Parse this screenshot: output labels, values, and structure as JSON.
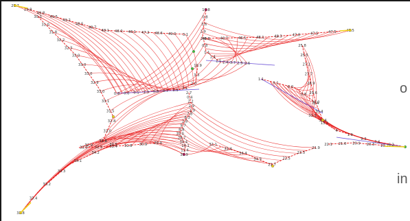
{
  "side_text": {
    "top": "o",
    "bottom": "in"
  },
  "colors": {
    "mesh": "#e81818",
    "axis": "#6a4fd6",
    "endpoint_yellow": "#f2d21a",
    "endpoint_green": "#3cc83c",
    "tip_marker": "#b02060"
  },
  "branches": {
    "upper_left": [
      "29.7",
      "29.8",
      "49.8",
      "49.5",
      "49.2",
      "48.5",
      "48.7",
      "48.1",
      "48.0",
      "48.1",
      "47.2",
      "48.6",
      "49.0",
      "3.1"
    ],
    "upper_left_inner": [
      "30.3",
      "31.0",
      "31.8",
      "32.2",
      "32.3",
      "33.0",
      "33.0",
      "33.0",
      "32.9",
      "33.0",
      "33.1",
      "31.5",
      "32.4",
      "33.0",
      "32.8"
    ],
    "upper_right": [
      "48.8",
      "48.7",
      "48.5",
      "48.1",
      "48.3",
      "47.8",
      "47.5",
      "47.5",
      "49.5"
    ],
    "upper_right_inner": [
      "25.8",
      "25.5",
      "27.1",
      "27.7",
      "28.9",
      "29.6",
      "30.0",
      "30.4",
      "30.4"
    ],
    "lower_right": [
      "31.3",
      "13.1",
      "4",
      "1.9",
      "9.3",
      "7.6",
      "6.2",
      "4"
    ],
    "lower_right_inner": [
      "22.1",
      "21.6",
      "20.9",
      "20.3",
      "20.2"
    ],
    "lower_left": [
      "33.5",
      "34.2",
      "34.1",
      "34.3",
      "33.2",
      "33.4",
      "33.8"
    ],
    "lower_left_inner": [
      "33.8",
      "32.9",
      "33.0",
      "32.5",
      "32.4",
      "31.8",
      "30.9",
      "29.9"
    ],
    "bottom_center": [
      "32.1",
      "33.4",
      "34.4",
      "34.9",
      "21.7",
      "22.5",
      "23.3",
      "21.9"
    ],
    "center_top": [
      "10.8",
      "0.8",
      "3.6",
      "1.9",
      "2.0",
      "0.8",
      "1.1",
      "1.4",
      "1.5",
      "2.4",
      "3.7",
      "2.9",
      "2.6"
    ],
    "center_mid": [
      "10.9",
      "3.3",
      "2.0",
      "3.1",
      "3.3",
      "0.7",
      "0.8",
      "1.3",
      "0.1",
      "0.0",
      "0.9"
    ],
    "center_low": [
      "2.7",
      "0.4",
      "2.2",
      "2.9",
      "1.9",
      "7.8",
      "8.3",
      "2.8",
      "9.7",
      "8.8",
      "30.0",
      "28.7",
      "30.4",
      "14.1",
      "11.4",
      "30.9"
    ],
    "center_right": [
      "1.1",
      "0.1",
      "0.0",
      "0.8",
      "1.4"
    ]
  }
}
